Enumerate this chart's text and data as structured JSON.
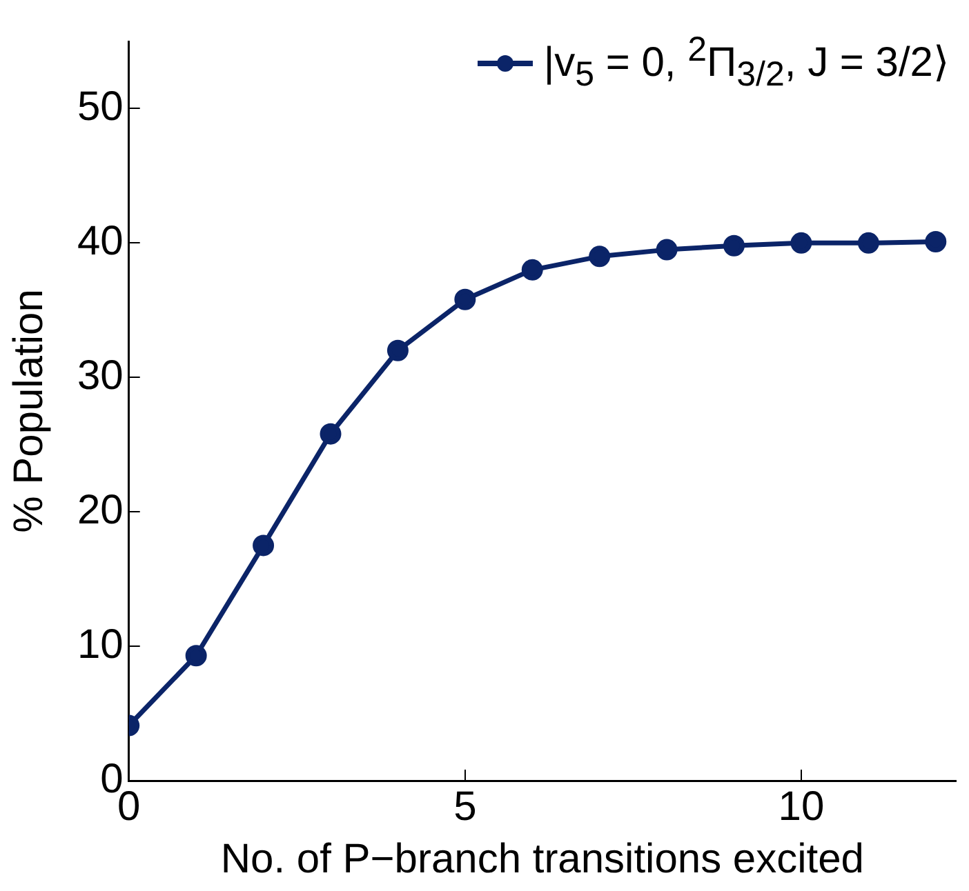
{
  "chart_data": {
    "type": "line",
    "xlabel": "No. of P−branch transitions excited",
    "ylabel": "% Population",
    "x": [
      0,
      1,
      2,
      3,
      4,
      5,
      6,
      7,
      8,
      9,
      10,
      11,
      12
    ],
    "series": [
      {
        "name": "|v$_{5}$ = 0, $^{2}$Π$_{3/2}$, J = 3/2⟩",
        "color": "#0b2468",
        "values": [
          4.1,
          9.3,
          17.5,
          25.8,
          32.0,
          35.8,
          38.0,
          39.0,
          39.5,
          39.8,
          40.0,
          40.0,
          40.1
        ]
      }
    ],
    "xlim": [
      0,
      12.3
    ],
    "xticks": [
      0,
      5,
      10
    ],
    "ylim": [
      0,
      55
    ],
    "yticks": [
      0,
      10,
      20,
      30,
      40,
      50
    ],
    "grid": false,
    "legend": "top right",
    "marker": "circle",
    "line_style": "solid"
  }
}
